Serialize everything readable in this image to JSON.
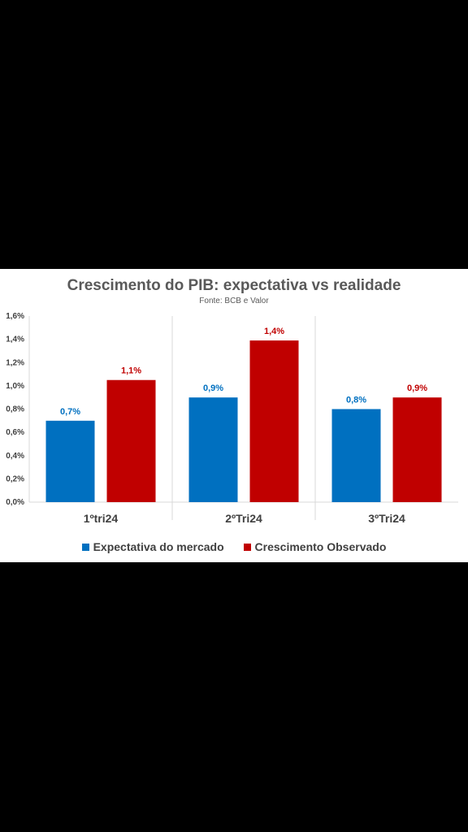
{
  "chart_data": {
    "type": "bar",
    "title": "Crescimento do PIB: expectativa vs realidade",
    "subtitle": "Fonte: BCB e Valor",
    "categories": [
      "1ºtri24",
      "2ºTri24",
      "3ºTri24"
    ],
    "series": [
      {
        "name": "Expectativa do mercado",
        "color": "#0070C0",
        "values": [
          0.7,
          0.9,
          0.8
        ],
        "labels": [
          "0,7%",
          "0,9%",
          "0,8%"
        ]
      },
      {
        "name": "Crescimento Observado",
        "color": "#C00000",
        "values": [
          1.05,
          1.39,
          0.9
        ],
        "labels": [
          "1,1%",
          "1,4%",
          "0,9%"
        ]
      }
    ],
    "ylim": [
      0,
      1.6
    ],
    "yticks": [
      {
        "value": 0,
        "label": "0,0%"
      },
      {
        "value": 0.2,
        "label": "0,2%"
      },
      {
        "value": 0.4,
        "label": "0,4%"
      },
      {
        "value": 0.6,
        "label": "0,6%"
      },
      {
        "value": 0.8,
        "label": "0,8%"
      },
      {
        "value": 1.0,
        "label": "1,0%"
      },
      {
        "value": 1.2,
        "label": "1,2%"
      },
      {
        "value": 1.4,
        "label": "1,4%"
      },
      {
        "value": 1.6,
        "label": "1,6%"
      }
    ],
    "legend_position": "bottom",
    "grid": false
  }
}
